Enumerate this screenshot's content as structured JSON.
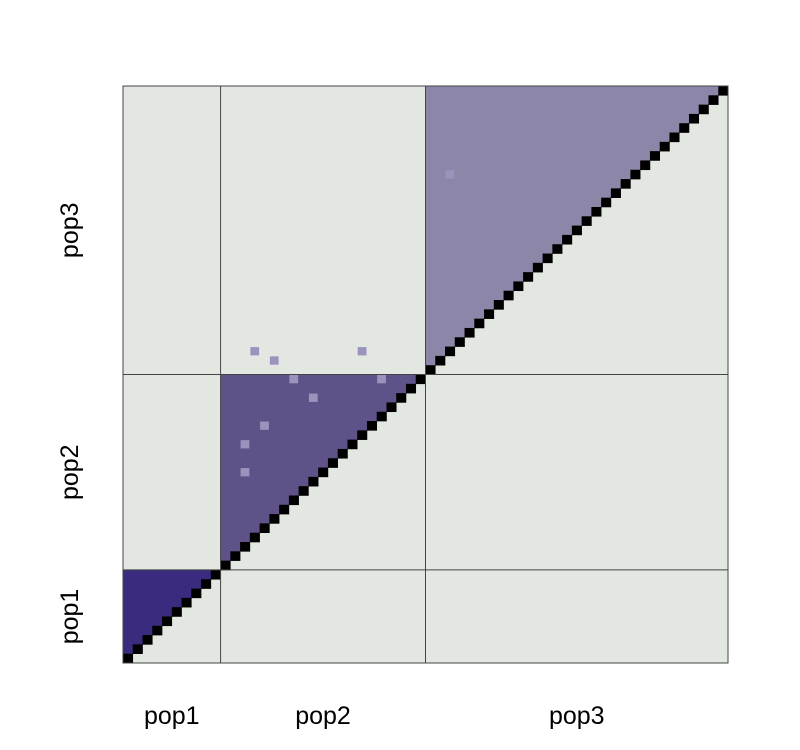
{
  "chart_data": {
    "type": "heatmap",
    "title": "",
    "xlabel": "",
    "ylabel": "",
    "populations": [
      {
        "name": "pop1",
        "start": 0,
        "size": 10
      },
      {
        "name": "pop2",
        "start": 10,
        "size": 21
      },
      {
        "name": "pop3",
        "start": 31,
        "size": 31
      }
    ],
    "n_individuals": 62,
    "diagonal_fill": "#000000",
    "background_fill": "#e2e7e2",
    "block_fills": {
      "pop1": "#3a2b7e",
      "pop2": "#5e5288",
      "pop3": "#8c86a8"
    },
    "outlier_fill": "#9c93bc",
    "outliers": [
      {
        "row": 33,
        "col": 13
      },
      {
        "row": 32,
        "col": 15
      },
      {
        "row": 33,
        "col": 24
      },
      {
        "row": 30,
        "col": 17
      },
      {
        "row": 30,
        "col": 26
      },
      {
        "row": 28,
        "col": 19
      },
      {
        "row": 25,
        "col": 14
      },
      {
        "row": 23,
        "col": 12
      },
      {
        "row": 20,
        "col": 12
      },
      {
        "row": 52,
        "col": 33
      }
    ],
    "x_tick_labels": [
      "pop1",
      "pop2",
      "pop3"
    ],
    "y_tick_labels": [
      "pop1",
      "pop2",
      "pop3"
    ]
  }
}
